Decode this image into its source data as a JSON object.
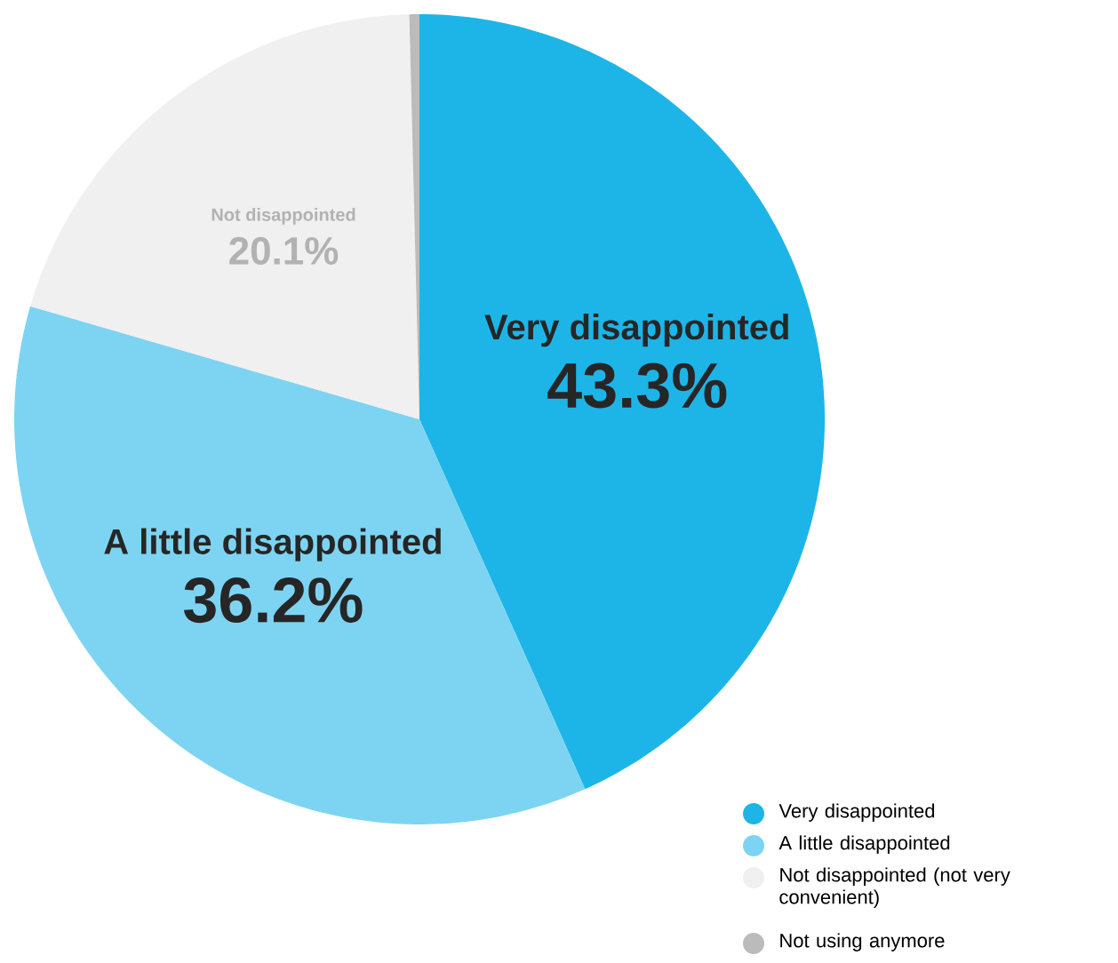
{
  "chart_data": {
    "type": "pie",
    "categories": [
      "Very disappointed",
      "A little disappointed",
      "Not disappointed (not very convenient)",
      "Not using anymore"
    ],
    "values": [
      43.3,
      36.2,
      20.1,
      0.4
    ],
    "colors": [
      "#1db5e8",
      "#7dd4f2",
      "#f0f0f0",
      "#bbbbbb"
    ],
    "value_labels": [
      "43.3%",
      "36.2%",
      "20.1%",
      null
    ],
    "annotations": [
      {
        "text": "Very disappointed",
        "x": "Very disappointed"
      },
      {
        "text": "A little disappointed",
        "x": "A little disappointed"
      },
      {
        "text": "Not disappointed",
        "x": "Not disappointed (not very convenient)"
      }
    ],
    "legend": "bottom right"
  }
}
